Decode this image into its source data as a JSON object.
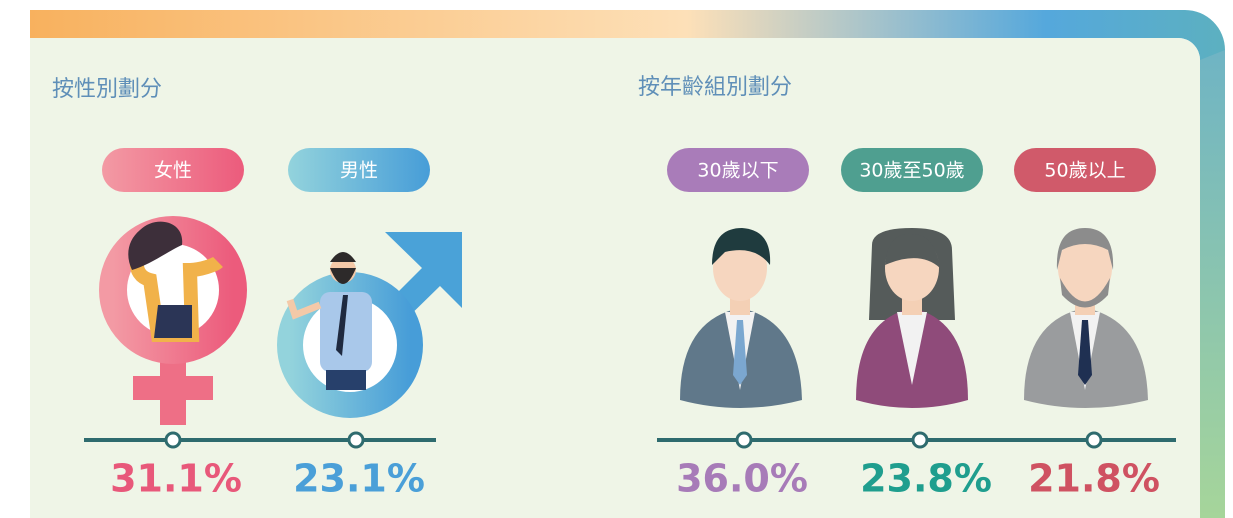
{
  "sections": [
    {
      "title": "按性別劃分",
      "groups": [
        {
          "label": "女性",
          "value": "31.1%"
        },
        {
          "label": "男性",
          "value": "23.1%"
        }
      ]
    },
    {
      "title": "按年齡組別劃分",
      "groups": [
        {
          "label": "30歲以下",
          "value": "36.0%"
        },
        {
          "label": "30歲至50歲",
          "value": "23.8%"
        },
        {
          "label": "50歲以上",
          "value": "21.8%"
        }
      ]
    }
  ]
}
